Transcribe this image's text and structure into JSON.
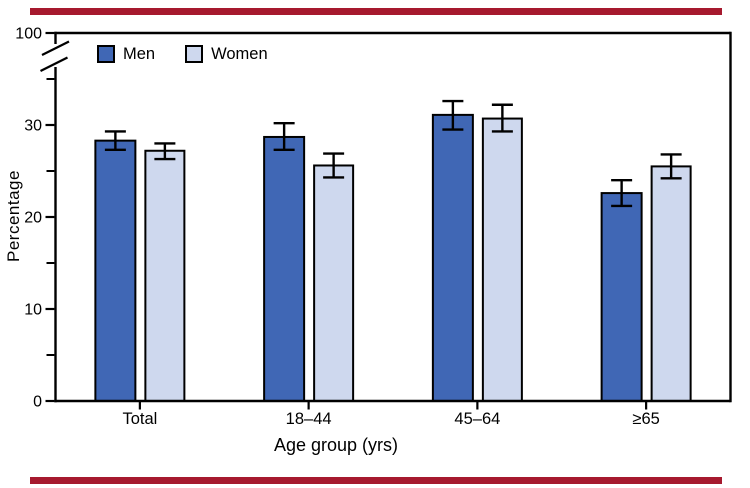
{
  "figure": {
    "rule_color": "#A6192E",
    "background": "#FFFFFF"
  },
  "chart_data": {
    "type": "bar",
    "title": "",
    "xlabel": "Age group (yrs)",
    "ylabel": "Percentage",
    "categories": [
      "Total",
      "18–44",
      "45–64",
      "≥65"
    ],
    "series": [
      {
        "name": "Men",
        "color": "#4067B5",
        "values": [
          28.3,
          28.7,
          31.1,
          22.6
        ],
        "ci_low": [
          27.3,
          27.3,
          29.5,
          21.2
        ],
        "ci_high": [
          29.3,
          30.2,
          32.6,
          24.0
        ]
      },
      {
        "name": "Women",
        "color": "#CED8EE",
        "values": [
          27.2,
          25.6,
          30.7,
          25.5
        ],
        "ci_low": [
          26.3,
          24.3,
          29.3,
          24.2
        ],
        "ci_high": [
          28.0,
          26.9,
          32.2,
          26.8
        ]
      }
    ],
    "y_axis": {
      "major_ticks": [
        0,
        10,
        20,
        30
      ],
      "minor_ticks": [
        5,
        15,
        25,
        35
      ],
      "broken_axis_top_label": "100",
      "axis_break": true
    },
    "bar_outline": "#000000",
    "error_bars": true,
    "grid": false,
    "legend_position": "top-left-inside"
  }
}
